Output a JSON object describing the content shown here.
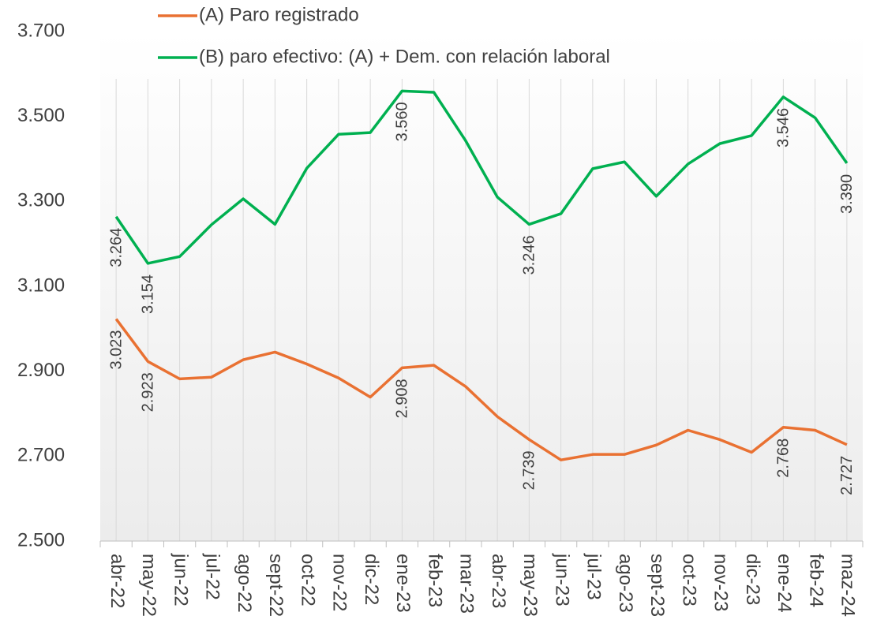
{
  "chart_data": {
    "type": "line",
    "categories": [
      "abr-22",
      "may-22",
      "jun-22",
      "jul-22",
      "ago-22",
      "sept-22",
      "oct-22",
      "nov-22",
      "dic-22",
      "ene-23",
      "feb-23",
      "mar-23",
      "abr-23",
      "may-23",
      "jun-23",
      "jul-23",
      "ago-23",
      "sept-23",
      "oct-23",
      "nov-23",
      "dic-23",
      "ene-24",
      "feb-24",
      "maz-24"
    ],
    "series": [
      {
        "name": "(A) Paro registrado",
        "color": "#e97132",
        "values": [
          3023,
          2923,
          2882,
          2886,
          2927,
          2945,
          2917,
          2884,
          2839,
          2908,
          2914,
          2864,
          2793,
          2739,
          2691,
          2704,
          2704,
          2726,
          2761,
          2739,
          2709,
          2768,
          2761,
          2727
        ],
        "value_labels": [
          "3.023",
          "2.923",
          null,
          null,
          null,
          null,
          null,
          null,
          null,
          "2.908",
          null,
          null,
          null,
          "2.739",
          null,
          null,
          null,
          null,
          null,
          null,
          null,
          "2.768",
          null,
          "2.727"
        ]
      },
      {
        "name": "(B) paro efectivo: (A) + Dem. con relación laboral",
        "color": "#00b050",
        "values": [
          3264,
          3154,
          3170,
          3245,
          3306,
          3246,
          3378,
          3458,
          3462,
          3560,
          3557,
          3443,
          3310,
          3246,
          3271,
          3377,
          3393,
          3312,
          3388,
          3436,
          3455,
          3546,
          3497,
          3390
        ],
        "value_labels": [
          "3.264",
          "3.154",
          null,
          null,
          null,
          null,
          null,
          null,
          null,
          "3.560",
          null,
          null,
          null,
          "3.246",
          null,
          null,
          null,
          null,
          null,
          null,
          null,
          "3.546",
          null,
          "3.390"
        ]
      }
    ],
    "ylim": [
      2500,
      3700
    ],
    "yticks": [
      {
        "value": 2500,
        "label": "2.500"
      },
      {
        "value": 2700,
        "label": "2.700"
      },
      {
        "value": 2900,
        "label": "2.900"
      },
      {
        "value": 3100,
        "label": "3.100"
      },
      {
        "value": 3300,
        "label": "3.300"
      },
      {
        "value": 3500,
        "label": "3.500"
      },
      {
        "value": 3700,
        "label": "3.700"
      }
    ],
    "grid": true
  }
}
